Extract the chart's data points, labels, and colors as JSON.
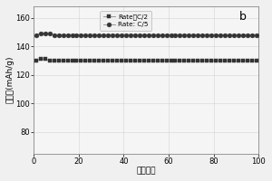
{
  "x_c2": [
    1,
    3,
    5,
    7,
    9,
    11,
    13,
    15,
    17,
    19,
    21,
    23,
    25,
    27,
    29,
    31,
    33,
    35,
    37,
    39,
    41,
    43,
    45,
    47,
    49,
    51,
    53,
    55,
    57,
    59,
    61,
    63,
    65,
    67,
    69,
    71,
    73,
    75,
    77,
    79,
    81,
    83,
    85,
    87,
    89,
    91,
    93,
    95,
    97,
    99
  ],
  "y_c2": [
    130,
    131,
    131,
    130,
    130,
    130,
    130,
    130,
    130,
    130,
    130,
    130,
    130,
    130,
    130,
    130,
    130,
    130,
    130,
    130,
    130,
    130,
    130,
    130,
    130,
    130,
    130,
    130,
    130,
    130,
    130,
    130,
    130,
    130,
    130,
    130,
    130,
    130,
    130,
    130,
    130,
    130,
    130,
    130,
    130,
    130,
    130,
    130,
    130,
    130
  ],
  "x_c5": [
    1,
    3,
    5,
    7,
    9,
    11,
    13,
    15,
    17,
    19,
    21,
    23,
    25,
    27,
    29,
    31,
    33,
    35,
    37,
    39,
    41,
    43,
    45,
    47,
    49,
    51,
    53,
    55,
    57,
    59,
    61,
    63,
    65,
    67,
    69,
    71,
    73,
    75,
    77,
    79,
    81,
    83,
    85,
    87,
    89,
    91,
    93,
    95,
    97,
    99
  ],
  "y_c5": [
    148,
    149,
    149,
    149,
    148,
    148,
    148,
    148,
    148,
    148,
    148,
    148,
    148,
    148,
    148,
    148,
    148,
    148,
    148,
    148,
    148,
    148,
    148,
    148,
    148,
    148,
    148,
    148,
    148,
    148,
    148,
    148,
    148,
    148,
    148,
    148,
    148,
    148,
    148,
    148,
    148,
    148,
    148,
    148,
    148,
    148,
    148,
    148,
    148,
    148
  ],
  "xlabel": "循环次数",
  "ylabel": "比容量(mAh/g)",
  "label_c2": "Rate：C/2",
  "label_c5": "Rate: C/5",
  "panel_label": "b",
  "xlim": [
    0,
    100
  ],
  "ylim": [
    65,
    168
  ],
  "yticks": [
    80,
    100,
    120,
    140,
    160
  ],
  "xticks": [
    0,
    20,
    40,
    60,
    80,
    100
  ],
  "bg_color": "#f0f0f0",
  "plot_bg_color": "#f5f5f5",
  "grid_color": "#cccccc",
  "line_color": "#999999",
  "marker_c2": "s",
  "marker_c5": "o",
  "marker_color": "#333333"
}
